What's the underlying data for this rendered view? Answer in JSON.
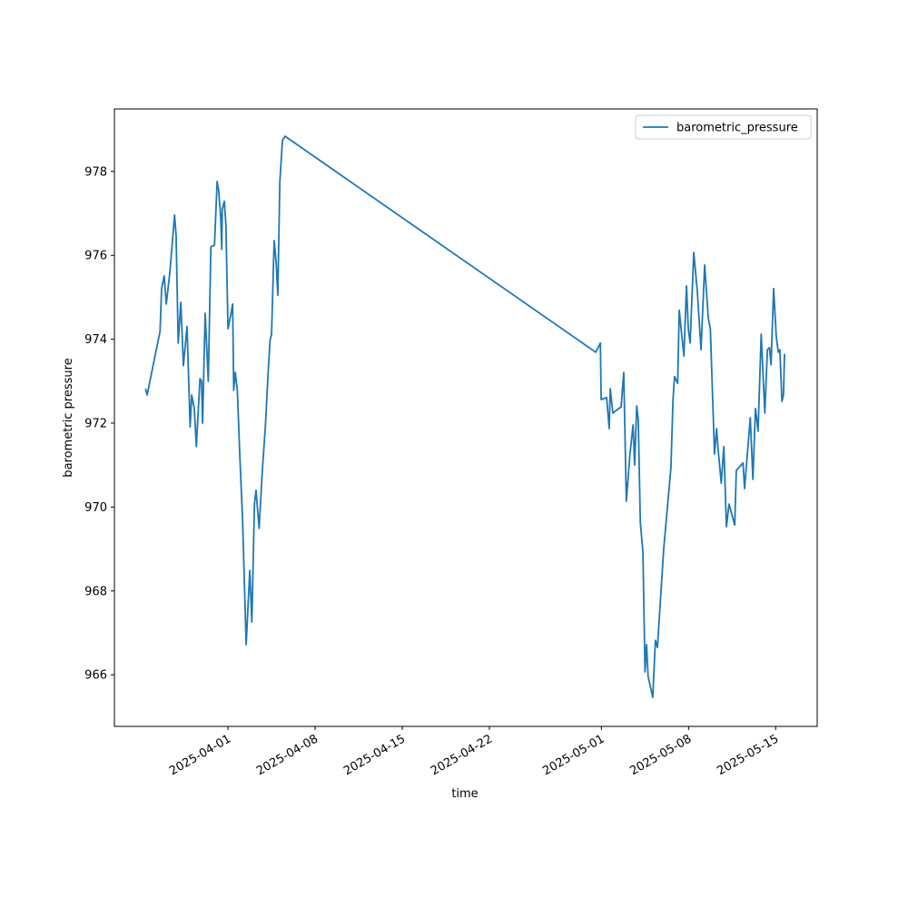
{
  "chart_data": {
    "type": "line",
    "xlabel": "time",
    "ylabel": "barometric pressure",
    "legend": "upper right",
    "x": [
      "2025-03-25 09:00",
      "2025-03-25 12:00",
      "2025-03-26 13:00",
      "2025-03-26 16:00",
      "2025-03-26 21:00",
      "2025-03-27 01:00",
      "2025-03-27 08:00",
      "2025-03-27 17:00",
      "2025-03-27 20:00",
      "2025-03-28 00:00",
      "2025-03-28 05:00",
      "2025-03-28 10:00",
      "2025-03-28 17:00",
      "2025-03-28 23:00",
      "2025-03-29 02:00",
      "2025-03-29 07:00",
      "2025-03-29 11:00",
      "2025-03-29 18:00",
      "2025-03-29 21:00",
      "2025-03-29 23:00",
      "2025-03-30 04:00",
      "2025-03-30 10:00",
      "2025-03-30 15:00",
      "2025-03-30 22:00",
      "2025-03-31 03:00",
      "2025-03-31 06:00",
      "2025-03-31 10:00",
      "2025-03-31 12:00",
      "2025-03-31 13:00",
      "2025-03-31 17:00",
      "2025-03-31 20:00",
      "2025-04-01 00:00",
      "2025-04-01 05:00",
      "2025-04-01 09:00",
      "2025-04-01 11:00",
      "2025-04-01 14:00",
      "2025-04-01 18:00",
      "2025-04-01 23:00",
      "2025-04-02 04:00",
      "2025-04-02 11:00",
      "2025-04-02 18:00",
      "2025-04-02 22:00",
      "2025-04-03 03:00",
      "2025-04-03 06:00",
      "2025-04-03 12:00",
      "2025-04-03 18:00",
      "2025-04-04 00:00",
      "2025-04-04 05:00",
      "2025-04-04 09:00",
      "2025-04-04 12:00",
      "2025-04-04 17:00",
      "2025-04-04 21:00",
      "2025-04-05 00:00",
      "2025-04-05 04:00",
      "2025-04-05 09:00",
      "2025-04-05 14:00",
      "2025-04-30 13:00",
      "2025-04-30 22:00",
      "2025-04-30 23:30",
      "2025-05-01 10:00",
      "2025-05-01 15:00",
      "2025-05-01 17:00",
      "2025-05-01 22:00",
      "2025-05-02 14:00",
      "2025-05-02 19:00",
      "2025-05-03 00:00",
      "2025-05-03 07:00",
      "2025-05-03 13:00",
      "2025-05-03 16:00",
      "2025-05-03 20:00",
      "2025-05-03 23:00",
      "2025-05-04 03:00",
      "2025-05-04 08:00",
      "2025-05-04 12:00",
      "2025-05-04 15:00",
      "2025-05-04 18:00",
      "2025-05-05 03:00",
      "2025-05-05 08:00",
      "2025-05-05 12:00",
      "2025-05-06 00:00",
      "2025-05-06 14:00",
      "2025-05-06 18:00",
      "2025-05-06 21:00",
      "2025-05-07 03:00",
      "2025-05-07 06:00",
      "2025-05-07 15:00",
      "2025-05-07 20:00",
      "2025-05-07 23:30",
      "2025-05-08 03:00",
      "2025-05-08 10:00",
      "2025-05-08 17:00",
      "2025-05-09 00:00",
      "2025-05-09 07:00",
      "2025-05-09 14:00",
      "2025-05-09 18:00",
      "2025-05-10 02:00",
      "2025-05-10 06:00",
      "2025-05-10 09:00",
      "2025-05-10 15:00",
      "2025-05-10 20:00",
      "2025-05-11 01:00",
      "2025-05-11 06:00",
      "2025-05-11 17:00",
      "2025-05-11 20:00",
      "2025-05-12 09:00",
      "2025-05-12 12:00",
      "2025-05-12 23:00",
      "2025-05-13 04:00",
      "2025-05-13 09:00",
      "2025-05-13 14:00",
      "2025-05-13 20:00",
      "2025-05-14 03:00",
      "2025-05-14 08:00",
      "2025-05-14 12:00",
      "2025-05-14 15:00",
      "2025-05-14 20:00",
      "2025-05-15 01:00",
      "2025-05-15 05:00",
      "2025-05-15 08:00",
      "2025-05-15 12:00",
      "2025-05-15 15:00",
      "2025-05-15 17:00"
    ],
    "series": [
      {
        "name": "barometric_pressure",
        "color": "#1f77b4",
        "values": [
          972.82,
          972.67,
          974.19,
          975.21,
          975.51,
          974.84,
          975.6,
          976.96,
          976.46,
          973.91,
          974.88,
          973.37,
          974.3,
          971.91,
          972.67,
          972.35,
          971.44,
          973.06,
          973.0,
          972.0,
          974.62,
          973.0,
          976.2,
          976.25,
          977.76,
          977.55,
          976.9,
          976.14,
          977.11,
          977.29,
          976.72,
          974.25,
          974.56,
          974.84,
          972.78,
          973.21,
          972.78,
          971.16,
          969.75,
          966.72,
          968.49,
          967.26,
          970.07,
          970.4,
          969.49,
          970.83,
          971.91,
          973.11,
          973.97,
          974.12,
          976.35,
          975.81,
          975.05,
          977.76,
          978.74,
          978.84,
          973.69,
          973.91,
          972.56,
          972.61,
          971.87,
          972.82,
          972.24,
          972.39,
          973.21,
          970.14,
          971.26,
          971.96,
          971.0,
          972.41,
          972.09,
          969.64,
          968.92,
          966.07,
          966.72,
          965.96,
          965.46,
          966.82,
          966.65,
          968.99,
          970.94,
          972.56,
          973.11,
          972.95,
          974.69,
          973.6,
          975.27,
          974.25,
          973.91,
          976.07,
          975.12,
          973.75,
          975.77,
          974.51,
          974.25,
          971.26,
          971.87,
          971.37,
          970.57,
          971.44,
          969.53,
          970.07,
          969.57,
          970.87,
          971.05,
          970.44,
          972.13,
          970.66,
          972.35,
          971.81,
          974.12,
          972.24,
          973.75,
          973.8,
          973.39,
          975.21,
          974.08,
          973.69,
          973.75,
          972.52,
          972.67,
          973.65
        ]
      }
    ],
    "xlim": [
      "2025-03-22 21:00",
      "2025-05-18 08:00"
    ],
    "xticks": [
      "2025-04-01",
      "2025-04-08",
      "2025-04-15",
      "2025-04-22",
      "2025-05-01",
      "2025-05-08",
      "2025-05-15"
    ],
    "ylim": [
      964.77,
      979.49
    ],
    "yticks": [
      966,
      968,
      970,
      972,
      974,
      976,
      978
    ],
    "grid": false
  }
}
